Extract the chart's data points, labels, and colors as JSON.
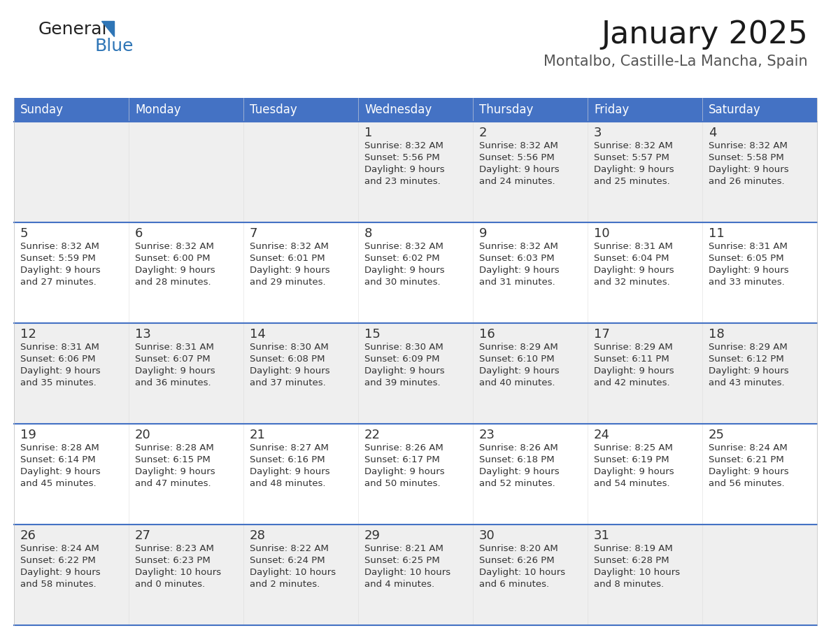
{
  "title": "January 2025",
  "subtitle": "Montalbo, Castille-La Mancha, Spain",
  "days_of_week": [
    "Sunday",
    "Monday",
    "Tuesday",
    "Wednesday",
    "Thursday",
    "Friday",
    "Saturday"
  ],
  "header_bg": "#4472C4",
  "header_text": "#FFFFFF",
  "row_bg_even": "#EFEFEF",
  "row_bg_odd": "#FFFFFF",
  "border_color": "#4472C4",
  "day_text_color": "#333333",
  "info_text_color": "#333333",
  "calendar": [
    [
      {
        "day": null,
        "sunrise": null,
        "sunset": null,
        "daylight": null
      },
      {
        "day": null,
        "sunrise": null,
        "sunset": null,
        "daylight": null
      },
      {
        "day": null,
        "sunrise": null,
        "sunset": null,
        "daylight": null
      },
      {
        "day": "1",
        "sunrise": "8:32 AM",
        "sunset": "5:56 PM",
        "daylight": "9 hours\nand 23 minutes."
      },
      {
        "day": "2",
        "sunrise": "8:32 AM",
        "sunset": "5:56 PM",
        "daylight": "9 hours\nand 24 minutes."
      },
      {
        "day": "3",
        "sunrise": "8:32 AM",
        "sunset": "5:57 PM",
        "daylight": "9 hours\nand 25 minutes."
      },
      {
        "day": "4",
        "sunrise": "8:32 AM",
        "sunset": "5:58 PM",
        "daylight": "9 hours\nand 26 minutes."
      }
    ],
    [
      {
        "day": "5",
        "sunrise": "8:32 AM",
        "sunset": "5:59 PM",
        "daylight": "9 hours\nand 27 minutes."
      },
      {
        "day": "6",
        "sunrise": "8:32 AM",
        "sunset": "6:00 PM",
        "daylight": "9 hours\nand 28 minutes."
      },
      {
        "day": "7",
        "sunrise": "8:32 AM",
        "sunset": "6:01 PM",
        "daylight": "9 hours\nand 29 minutes."
      },
      {
        "day": "8",
        "sunrise": "8:32 AM",
        "sunset": "6:02 PM",
        "daylight": "9 hours\nand 30 minutes."
      },
      {
        "day": "9",
        "sunrise": "8:32 AM",
        "sunset": "6:03 PM",
        "daylight": "9 hours\nand 31 minutes."
      },
      {
        "day": "10",
        "sunrise": "8:31 AM",
        "sunset": "6:04 PM",
        "daylight": "9 hours\nand 32 minutes."
      },
      {
        "day": "11",
        "sunrise": "8:31 AM",
        "sunset": "6:05 PM",
        "daylight": "9 hours\nand 33 minutes."
      }
    ],
    [
      {
        "day": "12",
        "sunrise": "8:31 AM",
        "sunset": "6:06 PM",
        "daylight": "9 hours\nand 35 minutes."
      },
      {
        "day": "13",
        "sunrise": "8:31 AM",
        "sunset": "6:07 PM",
        "daylight": "9 hours\nand 36 minutes."
      },
      {
        "day": "14",
        "sunrise": "8:30 AM",
        "sunset": "6:08 PM",
        "daylight": "9 hours\nand 37 minutes."
      },
      {
        "day": "15",
        "sunrise": "8:30 AM",
        "sunset": "6:09 PM",
        "daylight": "9 hours\nand 39 minutes."
      },
      {
        "day": "16",
        "sunrise": "8:29 AM",
        "sunset": "6:10 PM",
        "daylight": "9 hours\nand 40 minutes."
      },
      {
        "day": "17",
        "sunrise": "8:29 AM",
        "sunset": "6:11 PM",
        "daylight": "9 hours\nand 42 minutes."
      },
      {
        "day": "18",
        "sunrise": "8:29 AM",
        "sunset": "6:12 PM",
        "daylight": "9 hours\nand 43 minutes."
      }
    ],
    [
      {
        "day": "19",
        "sunrise": "8:28 AM",
        "sunset": "6:14 PM",
        "daylight": "9 hours\nand 45 minutes."
      },
      {
        "day": "20",
        "sunrise": "8:28 AM",
        "sunset": "6:15 PM",
        "daylight": "9 hours\nand 47 minutes."
      },
      {
        "day": "21",
        "sunrise": "8:27 AM",
        "sunset": "6:16 PM",
        "daylight": "9 hours\nand 48 minutes."
      },
      {
        "day": "22",
        "sunrise": "8:26 AM",
        "sunset": "6:17 PM",
        "daylight": "9 hours\nand 50 minutes."
      },
      {
        "day": "23",
        "sunrise": "8:26 AM",
        "sunset": "6:18 PM",
        "daylight": "9 hours\nand 52 minutes."
      },
      {
        "day": "24",
        "sunrise": "8:25 AM",
        "sunset": "6:19 PM",
        "daylight": "9 hours\nand 54 minutes."
      },
      {
        "day": "25",
        "sunrise": "8:24 AM",
        "sunset": "6:21 PM",
        "daylight": "9 hours\nand 56 minutes."
      }
    ],
    [
      {
        "day": "26",
        "sunrise": "8:24 AM",
        "sunset": "6:22 PM",
        "daylight": "9 hours\nand 58 minutes."
      },
      {
        "day": "27",
        "sunrise": "8:23 AM",
        "sunset": "6:23 PM",
        "daylight": "10 hours\nand 0 minutes."
      },
      {
        "day": "28",
        "sunrise": "8:22 AM",
        "sunset": "6:24 PM",
        "daylight": "10 hours\nand 2 minutes."
      },
      {
        "day": "29",
        "sunrise": "8:21 AM",
        "sunset": "6:25 PM",
        "daylight": "10 hours\nand 4 minutes."
      },
      {
        "day": "30",
        "sunrise": "8:20 AM",
        "sunset": "6:26 PM",
        "daylight": "10 hours\nand 6 minutes."
      },
      {
        "day": "31",
        "sunrise": "8:19 AM",
        "sunset": "6:28 PM",
        "daylight": "10 hours\nand 8 minutes."
      },
      {
        "day": null,
        "sunrise": null,
        "sunset": null,
        "daylight": null
      }
    ]
  ],
  "logo_general_color": "#222222",
  "logo_blue_color": "#2E75B6",
  "logo_triangle_color": "#2E75B6",
  "title_fontsize": 32,
  "subtitle_fontsize": 15,
  "header_fontsize": 12,
  "day_num_fontsize": 13,
  "cell_text_fontsize": 9.5
}
